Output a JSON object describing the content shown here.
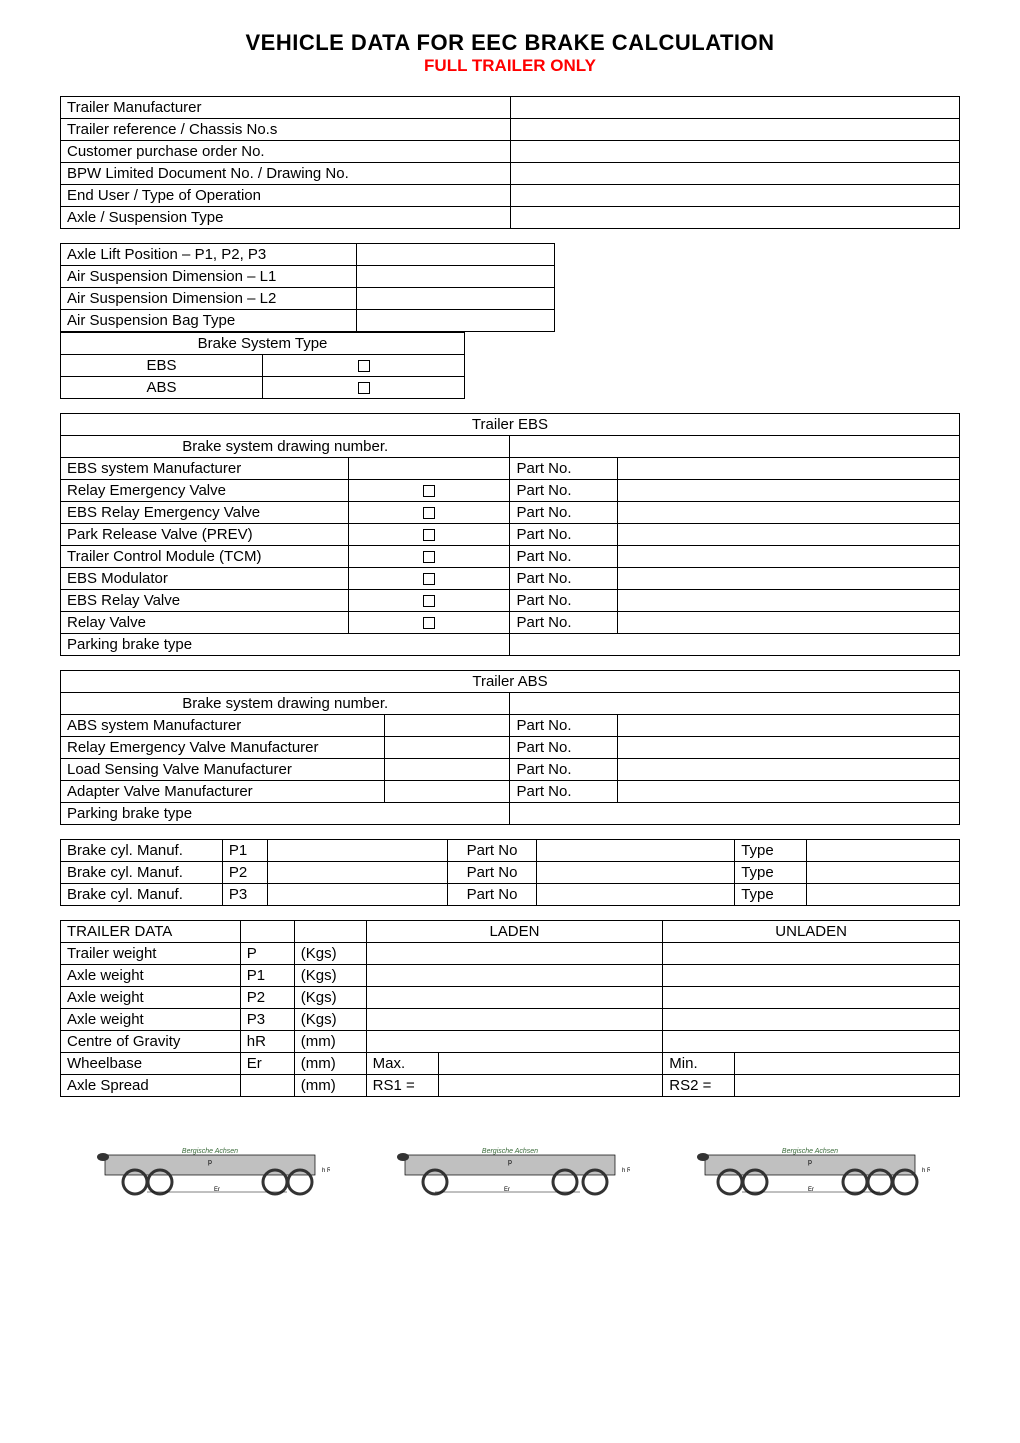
{
  "title": {
    "main": "VEHICLE DATA FOR EEC BRAKE CALCULATION",
    "sub": "FULL TRAILER ONLY"
  },
  "header_info": {
    "rows": [
      "Trailer Manufacturer",
      "Trailer reference / Chassis No.s",
      "Customer purchase order No.",
      "BPW Limited Document No. / Drawing No.",
      "End User / Type of Operation",
      "Axle / Suspension Type"
    ]
  },
  "axle_lift": {
    "rows": [
      "Axle Lift Position – P1, P2, P3",
      "Air Suspension Dimension – L1",
      "Air Suspension Dimension – L2",
      "Air Suspension Bag Type"
    ]
  },
  "brake_system_type": {
    "header": "Brake System Type",
    "options": [
      "EBS",
      "ABS"
    ]
  },
  "trailer_ebs": {
    "title": "Trailer EBS",
    "drawing_label": "Brake system drawing number.",
    "partno_label": "Part No.",
    "rows": [
      {
        "label": "EBS system Manufacturer",
        "checkbox": false
      },
      {
        "label": "Relay Emergency Valve",
        "checkbox": true
      },
      {
        "label": "EBS Relay Emergency Valve",
        "checkbox": true
      },
      {
        "label": "Park Release Valve (PREV)",
        "checkbox": true
      },
      {
        "label": "Trailer Control Module (TCM)",
        "checkbox": true
      },
      {
        "label": "EBS Modulator",
        "checkbox": true
      },
      {
        "label": "EBS Relay Valve",
        "checkbox": true
      },
      {
        "label": "Relay Valve",
        "checkbox": true
      }
    ],
    "parking_label": "Parking brake type"
  },
  "trailer_abs": {
    "title": "Trailer ABS",
    "drawing_label": "Brake system drawing number.",
    "partno_label": "Part No.",
    "rows": [
      "ABS system Manufacturer",
      "Relay Emergency Valve Manufacturer",
      "Load Sensing Valve Manufacturer",
      "Adapter Valve Manufacturer"
    ],
    "parking_label": "Parking brake type"
  },
  "brake_cyl": {
    "label": "Brake cyl. Manuf.",
    "partno": "Part No",
    "type": "Type",
    "rows": [
      "P1",
      "P2",
      "P3"
    ]
  },
  "trailer_data": {
    "header": "TRAILER DATA",
    "laden": "LADEN",
    "unladen": "UNLADEN",
    "rows": [
      {
        "label": "Trailer weight",
        "sym": "P",
        "unit": "(Kgs)"
      },
      {
        "label": "Axle weight",
        "sym": "P1",
        "unit": "(Kgs)"
      },
      {
        "label": "Axle weight",
        "sym": "P2",
        "unit": "(Kgs)"
      },
      {
        "label": "Axle weight",
        "sym": "P3",
        "unit": "(Kgs)"
      },
      {
        "label": "Centre of Gravity",
        "sym": "hR",
        "unit": "(mm)"
      }
    ],
    "wheelbase": {
      "label": "Wheelbase",
      "sym": "Er",
      "unit": "(mm)",
      "max": "Max.",
      "min": "Min."
    },
    "axlespread": {
      "label": "Axle Spread",
      "sym": "",
      "unit": "(mm)",
      "rs1": "RS1 =",
      "rs2": "RS2 ="
    }
  },
  "diagram": {
    "text": "Bergische Achsen",
    "p_label": "p",
    "er_label": "Er",
    "l1": "L1",
    "l2": "L2",
    "wheel_fill": "#333333",
    "bg_fill": "#c0c0c0",
    "text_color": "#3a6a3a"
  }
}
